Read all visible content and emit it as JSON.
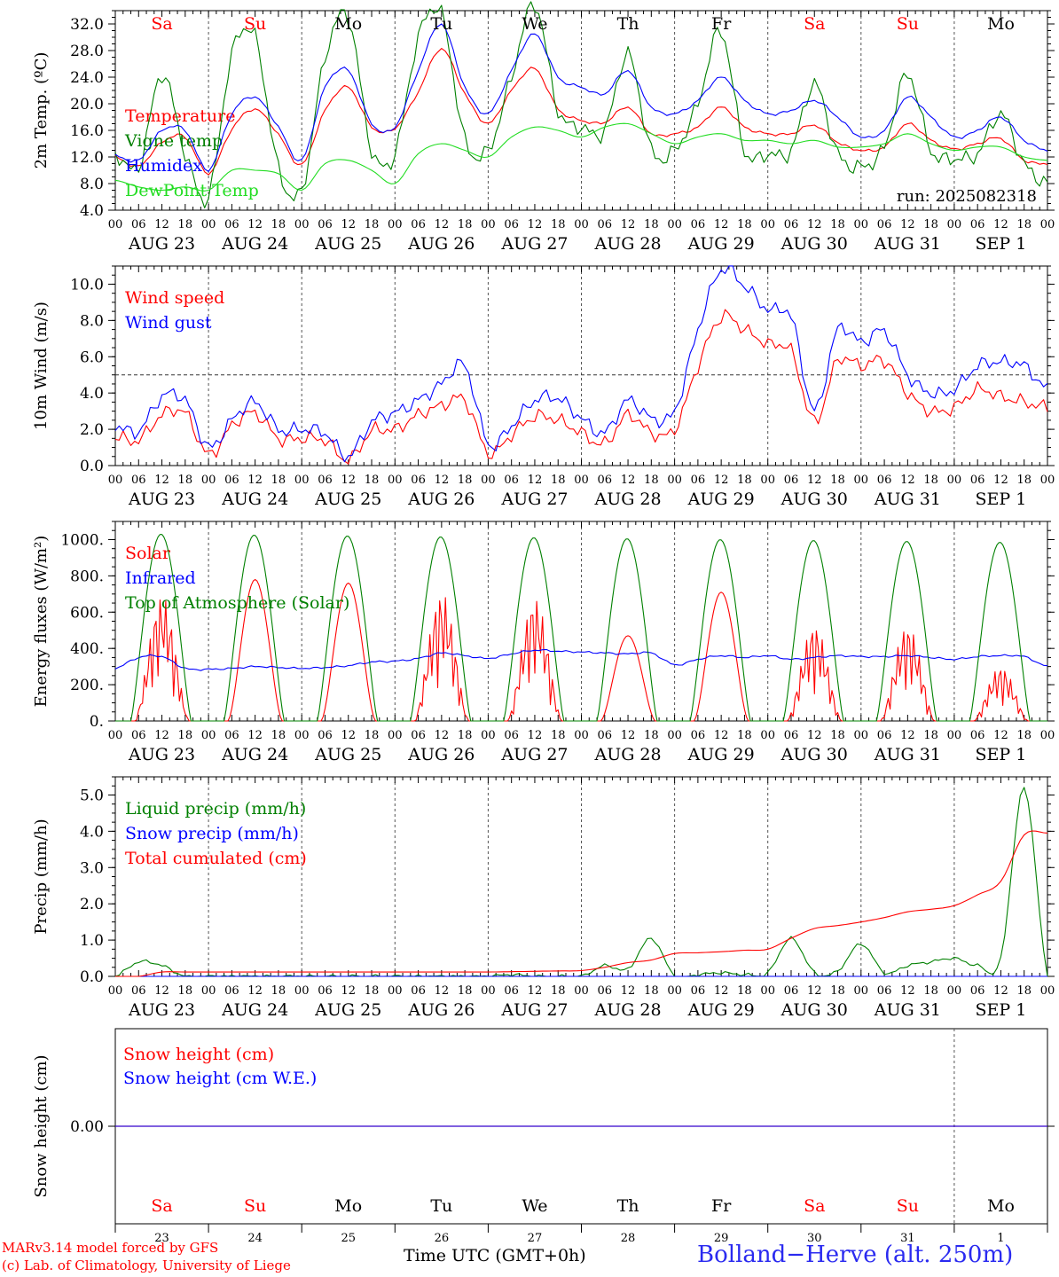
{
  "footer": {
    "credit_line1": "MARv3.14 model forced by GFS",
    "credit_line2": "(c) Lab. of Climatology, University of Liege",
    "xaxis_title": "Time UTC (GMT+0h)",
    "station": "Bolland−Herve (alt. 250m)"
  },
  "colors": {
    "red": "#ff0000",
    "green": "#008000",
    "blue": "#0000ff",
    "light_green": "#22dd22",
    "axis": "#000000"
  },
  "time_axis": {
    "hour_labels": [
      "00",
      "06",
      "12",
      "18"
    ],
    "final_hour_label": "00",
    "date_labels": [
      "AUG 23",
      "AUG 24",
      "AUG 25",
      "AUG 26",
      "AUG 27",
      "AUG 28",
      "AUG 29",
      "AUG 30",
      "AUG 31",
      "SEP  1"
    ],
    "weekdays": [
      "Sa",
      "Su",
      "Mo",
      "Tu",
      "We",
      "Th",
      "Fr",
      "Sa",
      "Su",
      "Mo"
    ],
    "weekend_flags": [
      true,
      true,
      false,
      false,
      false,
      false,
      false,
      true,
      true,
      false
    ],
    "day_numbers": [
      "23",
      "24",
      "25",
      "26",
      "27",
      "28",
      "29",
      "30",
      "31",
      "1"
    ]
  },
  "chart_data": [
    {
      "type": "line",
      "ylabel": "2m Temp. (ºC)",
      "ylim": [
        4,
        34
      ],
      "yticks": [
        "4.0",
        "8.0",
        "12.0",
        "16.0",
        "20.0",
        "24.0",
        "28.0",
        "32.0"
      ],
      "ytick_values": [
        4,
        8,
        12,
        16,
        20,
        24,
        28,
        32
      ],
      "annotation": "run: 2025082318",
      "x_start": "AUG 23 00 UTC",
      "x_step_hours": 6,
      "series": [
        {
          "name": "Temperature",
          "color": "#ff0000",
          "values": [
            12.0,
            10.6,
            14.2,
            15.0,
            9.5,
            16.2,
            19.2,
            15.4,
            10.8,
            19.0,
            22.5,
            16.5,
            16.3,
            21.8,
            28.3,
            21.5,
            17.0,
            22.0,
            25.3,
            19.2,
            17.5,
            17.2,
            19.5,
            15.5,
            15.5,
            16.5,
            19.5,
            16.5,
            15.5,
            15.5,
            16.8,
            14.2,
            13.0,
            13.5,
            17.0,
            14.5,
            13.2,
            14.0,
            14.8,
            11.5,
            11.0
          ]
        },
        {
          "name": "Vigne temp",
          "color": "#008000",
          "values": [
            12.5,
            10.5,
            24.5,
            12.5,
            6.0,
            27.5,
            30.0,
            10.2,
            7.0,
            27.0,
            33.0,
            13.0,
            12.5,
            30.0,
            33.5,
            14.5,
            13.0,
            24.0,
            35.0,
            19.0,
            16.5,
            16.0,
            27.5,
            13.0,
            13.0,
            20.0,
            31.0,
            13.0,
            12.5,
            13.0,
            23.0,
            12.5,
            10.5,
            13.5,
            24.5,
            13.0,
            11.8,
            12.5,
            18.5,
            11.0,
            8.0
          ]
        },
        {
          "name": "Humidex",
          "color": "#0000ff",
          "values": [
            12.2,
            11.5,
            16.0,
            16.0,
            10.0,
            18.5,
            21.0,
            16.5,
            11.5,
            22.5,
            25.0,
            17.0,
            16.5,
            25.0,
            32.0,
            22.5,
            18.5,
            25.0,
            30.5,
            24.0,
            22.5,
            21.5,
            25.0,
            19.5,
            18.5,
            20.5,
            24.0,
            20.5,
            18.5,
            19.0,
            20.5,
            18.0,
            15.0,
            16.0,
            21.0,
            18.0,
            15.0,
            16.0,
            18.0,
            14.5,
            13.0
          ]
        },
        {
          "name": "DewPoint Temp",
          "color": "#22dd22",
          "values": [
            8.5,
            7.5,
            7.0,
            7.5,
            7.0,
            10.0,
            10.0,
            9.5,
            7.0,
            11.0,
            11.5,
            10.0,
            8.0,
            12.5,
            14.0,
            13.0,
            12.0,
            15.0,
            16.5,
            16.0,
            15.0,
            16.5,
            17.0,
            15.5,
            14.0,
            15.0,
            15.5,
            14.5,
            14.5,
            14.0,
            14.5,
            13.5,
            13.5,
            14.0,
            15.5,
            14.0,
            13.0,
            13.5,
            13.5,
            12.0,
            11.5
          ]
        }
      ]
    },
    {
      "type": "line",
      "ylabel": "10m Wind (m/s)",
      "ylim": [
        0,
        11
      ],
      "yticks": [
        "0.0",
        "2.0",
        "4.0",
        "6.0",
        "8.0",
        "10.0"
      ],
      "ytick_values": [
        0,
        2,
        4,
        6,
        8,
        10
      ],
      "reference_line": 5,
      "x_start": "AUG 23 00 UTC",
      "x_step_hours": 6,
      "series": [
        {
          "name": "Wind speed",
          "color": "#ff0000",
          "values": [
            1.6,
            1.4,
            2.8,
            2.9,
            0.6,
            2.2,
            2.9,
            1.5,
            1.5,
            1.4,
            0.3,
            1.9,
            2.0,
            2.8,
            3.3,
            3.6,
            0.7,
            1.7,
            2.7,
            2.5,
            1.8,
            1.2,
            2.8,
            1.8,
            2.0,
            5.5,
            8.2,
            7.5,
            6.7,
            6.3,
            2.4,
            5.8,
            5.5,
            5.8,
            4.0,
            3.0,
            3.2,
            4.2,
            3.8,
            3.5,
            3.2
          ]
        },
        {
          "name": "Wind gust",
          "color": "#0000ff",
          "values": [
            2.2,
            1.9,
            3.8,
            3.6,
            1.0,
            2.5,
            3.5,
            2.0,
            2.0,
            1.8,
            0.5,
            2.4,
            2.9,
            3.6,
            4.5,
            5.5,
            1.2,
            2.2,
            3.6,
            3.7,
            2.6,
            1.8,
            3.6,
            2.6,
            3.0,
            7.5,
            10.8,
            9.9,
            8.6,
            8.2,
            3.0,
            7.5,
            6.8,
            7.4,
            5.0,
            4.0,
            4.2,
            5.5,
            5.7,
            5.5,
            4.2
          ]
        }
      ]
    },
    {
      "type": "line",
      "ylabel": "Energy fluxes (W/m²)",
      "ylim": [
        0,
        1100
      ],
      "yticks": [
        "0.",
        "200.",
        "400.",
        "600.",
        "800.",
        "1000."
      ],
      "ytick_values": [
        0,
        200,
        400,
        600,
        800,
        1000
      ],
      "x_start": "AUG 23 00 UTC",
      "x_step_hours": 6,
      "series": [
        {
          "name": "Solar",
          "color": "#ff0000",
          "daily_peak": [
            690,
            780,
            760,
            710,
            680,
            470,
            710,
            530,
            530,
            300
          ]
        },
        {
          "name": "Infrared",
          "color": "#0000ff",
          "values": [
            290,
            350,
            355,
            290,
            285,
            290,
            300,
            295,
            290,
            295,
            305,
            325,
            330,
            345,
            375,
            360,
            345,
            370,
            390,
            385,
            380,
            375,
            370,
            375,
            310,
            340,
            360,
            350,
            360,
            340,
            350,
            360,
            355,
            355,
            360,
            350,
            340,
            355,
            360,
            355,
            300
          ]
        },
        {
          "name": "Top of Atmosphere (Solar)",
          "color": "#008000",
          "daily_peak": [
            1030,
            1025,
            1020,
            1015,
            1010,
            1005,
            1000,
            995,
            990,
            985
          ]
        }
      ]
    },
    {
      "type": "line",
      "ylabel": "Precip (mm/h)",
      "ylim": [
        0,
        5.5
      ],
      "yticks": [
        "0.0",
        "1.0",
        "2.0",
        "3.0",
        "4.0",
        "5.0"
      ],
      "ytick_values": [
        0,
        1,
        2,
        3,
        4,
        5
      ],
      "x_start": "AUG 23 00 UTC",
      "x_step_hours": 6,
      "series": [
        {
          "name": "Liquid precip (mm/h)",
          "color": "#008000",
          "values": [
            0,
            0.4,
            0.3,
            0,
            0,
            0,
            0,
            0,
            0,
            0,
            0,
            0,
            0,
            0,
            0,
            0,
            0,
            0.05,
            0,
            0,
            0,
            0.3,
            0.2,
            1.05,
            0,
            0.05,
            0.1,
            0.05,
            0.1,
            1.05,
            0.1,
            0.15,
            0.9,
            0.1,
            0.3,
            0.4,
            0.5,
            0.3,
            0.5,
            5.2,
            0
          ]
        },
        {
          "name": "Snow precip (mm/h)",
          "color": "#0000ff",
          "values": [
            0,
            0,
            0,
            0,
            0,
            0,
            0,
            0,
            0,
            0,
            0,
            0,
            0,
            0,
            0,
            0,
            0,
            0,
            0,
            0,
            0,
            0,
            0,
            0,
            0,
            0,
            0,
            0,
            0,
            0,
            0,
            0,
            0,
            0,
            0,
            0,
            0,
            0,
            0,
            0,
            0
          ]
        },
        {
          "name": "Total cumulated (cm)",
          "color": "#ff0000",
          "values": [
            0,
            0,
            0.12,
            0.12,
            0.12,
            0.12,
            0.12,
            0.12,
            0.12,
            0.12,
            0.12,
            0.12,
            0.12,
            0.12,
            0.12,
            0.12,
            0.12,
            0.13,
            0.14,
            0.15,
            0.16,
            0.25,
            0.38,
            0.45,
            0.63,
            0.65,
            0.68,
            0.72,
            0.75,
            1.05,
            1.32,
            1.4,
            1.5,
            1.62,
            1.78,
            1.85,
            1.95,
            2.25,
            2.62,
            3.9,
            3.95
          ]
        }
      ]
    },
    {
      "type": "line",
      "ylabel": "Snow height (cm)",
      "ylim": [
        -1,
        1
      ],
      "yticks": [
        "0.00"
      ],
      "ytick_values": [
        0
      ],
      "x_start": "AUG 23 00 UTC",
      "x_step_hours": 6,
      "series": [
        {
          "name": "Snow height (cm)",
          "color": "#ff0000",
          "values": [
            0,
            0,
            0,
            0,
            0,
            0,
            0,
            0,
            0,
            0,
            0,
            0,
            0,
            0,
            0,
            0,
            0,
            0,
            0,
            0,
            0,
            0,
            0,
            0,
            0,
            0,
            0,
            0,
            0,
            0,
            0,
            0,
            0,
            0,
            0,
            0,
            0,
            0,
            0,
            0,
            0
          ]
        },
        {
          "name": "Snow height (cm W.E.)",
          "color": "#0000ff",
          "values": [
            0,
            0,
            0,
            0,
            0,
            0,
            0,
            0,
            0,
            0,
            0,
            0,
            0,
            0,
            0,
            0,
            0,
            0,
            0,
            0,
            0,
            0,
            0,
            0,
            0,
            0,
            0,
            0,
            0,
            0,
            0,
            0,
            0,
            0,
            0,
            0,
            0,
            0,
            0,
            0,
            0
          ]
        }
      ]
    }
  ]
}
